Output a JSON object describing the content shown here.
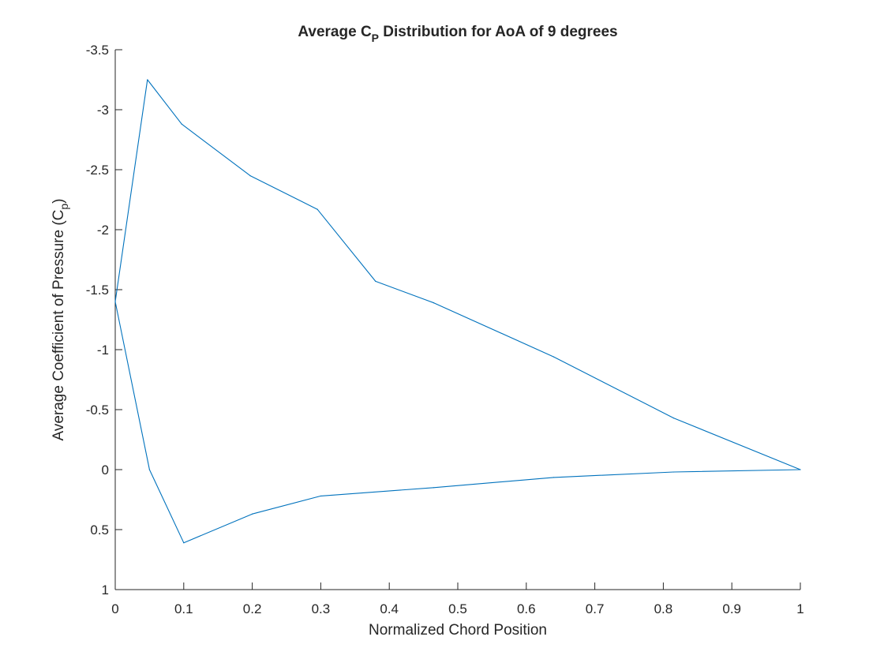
{
  "chart_data": {
    "type": "line",
    "title": {
      "prefix": "Average C",
      "subscript": "P",
      "suffix": " Distribution for AoA of 9 degrees"
    },
    "xlabel": "Normalized Chord Position",
    "ylabel": {
      "prefix": "Average Coefficient of Pressure (C",
      "subscript": "p",
      "suffix": ")"
    },
    "xlim": [
      0,
      1
    ],
    "ylim": [
      -3.5,
      1
    ],
    "y_reversed": true,
    "grid": false,
    "box": "left-bottom",
    "x_ticks": [
      "0",
      "0.1",
      "0.2",
      "0.3",
      "0.4",
      "0.5",
      "0.6",
      "0.7",
      "0.8",
      "0.9",
      "1"
    ],
    "y_ticks": [
      "-3.5",
      "-3",
      "-2.5",
      "-2",
      "-1.5",
      "-1",
      "-0.5",
      "0",
      "0.5",
      "1"
    ],
    "series": [
      {
        "color": "#0072BD",
        "x": [
          0,
          0.047,
          0.097,
          0.197,
          0.295,
          0.38,
          0.465,
          0.64,
          0.815,
          1,
          0.815,
          0.64,
          0.465,
          0.3,
          0.2,
          0.1,
          0.05,
          0
        ],
        "y": [
          -1.4,
          -3.25,
          -2.88,
          -2.45,
          -2.17,
          -1.57,
          -1.39,
          -0.94,
          -0.43,
          0.0,
          0.02,
          0.065,
          0.15,
          0.22,
          0.37,
          0.61,
          0.0,
          -1.4
        ]
      }
    ]
  }
}
